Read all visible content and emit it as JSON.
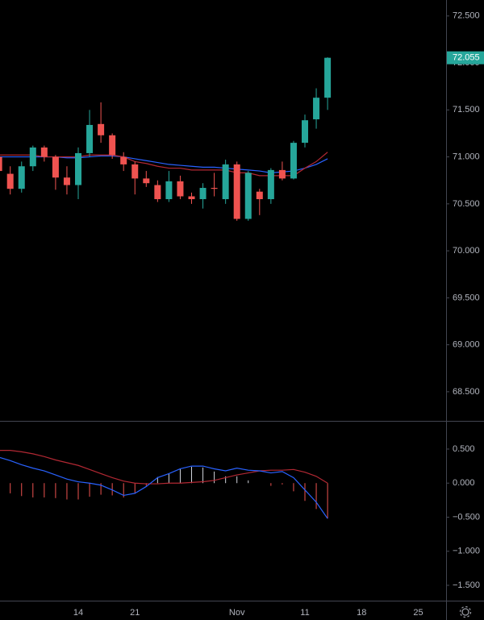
{
  "chart_data": [
    {
      "type": "candlestick",
      "categories": [
        null,
        null,
        null,
        null,
        null,
        null,
        null,
        "14",
        null,
        null,
        null,
        null,
        "21",
        null,
        null,
        null,
        null,
        null,
        null,
        null,
        null,
        "Nov",
        null,
        null,
        null,
        null,
        null,
        "11",
        null,
        null,
        null,
        null,
        "18",
        null,
        null,
        null,
        null,
        "25"
      ],
      "open": [
        71.0,
        70.82,
        70.66,
        70.9,
        71.1,
        71.0,
        70.78,
        70.7,
        71.04,
        71.35,
        71.23,
        71.0,
        70.92,
        70.77,
        70.7,
        70.55,
        70.74,
        70.58,
        70.55,
        70.67,
        70.55,
        70.92,
        70.34,
        70.63,
        70.55,
        70.86,
        70.77,
        71.15,
        71.4,
        71.63,
        null,
        null,
        null,
        null,
        null,
        null,
        null,
        null
      ],
      "high": [
        71.05,
        70.9,
        70.95,
        71.12,
        71.12,
        71.02,
        70.9,
        71.1,
        71.5,
        71.58,
        71.25,
        71.05,
        70.95,
        70.85,
        70.75,
        70.85,
        70.8,
        70.62,
        70.72,
        70.83,
        70.97,
        70.95,
        70.85,
        70.66,
        70.88,
        70.95,
        71.17,
        71.45,
        71.73,
        72.06,
        null,
        null,
        null,
        null,
        null,
        null,
        null,
        null
      ],
      "low": [
        70.8,
        70.6,
        70.62,
        70.85,
        70.95,
        70.65,
        70.6,
        70.55,
        71.0,
        71.15,
        70.98,
        70.85,
        70.6,
        70.68,
        70.52,
        70.52,
        70.55,
        70.5,
        70.45,
        70.58,
        70.5,
        70.32,
        70.32,
        70.38,
        70.5,
        70.75,
        70.76,
        71.1,
        71.3,
        71.5,
        null,
        null,
        null,
        null,
        null,
        null,
        null,
        null
      ],
      "close": [
        70.85,
        70.66,
        70.9,
        71.1,
        71.0,
        70.78,
        70.7,
        71.04,
        71.34,
        71.23,
        71.02,
        70.92,
        70.77,
        70.72,
        70.55,
        70.74,
        70.58,
        70.55,
        70.67,
        70.66,
        70.92,
        70.34,
        70.83,
        70.55,
        70.86,
        70.77,
        71.15,
        71.39,
        71.63,
        72.055,
        null,
        null,
        null,
        null,
        null,
        null,
        null,
        null
      ],
      "up_color": "#26a69a",
      "down_color": "#ef5350",
      "lines": [
        {
          "color": "#2962ff",
          "values": [
            71.0,
            71.0,
            71.0,
            71.0,
            71.0,
            71.0,
            70.99,
            70.99,
            71.0,
            71.01,
            71.01,
            71.0,
            70.98,
            70.96,
            70.94,
            70.92,
            70.91,
            70.9,
            70.89,
            70.89,
            70.88,
            70.87,
            70.86,
            70.85,
            70.83,
            70.84,
            70.85,
            70.88,
            70.92,
            70.98,
            null,
            null,
            null,
            null,
            null,
            null,
            null,
            null
          ]
        },
        {
          "color": "#b22833",
          "values": [
            71.02,
            71.02,
            71.02,
            71.02,
            71.0,
            71.0,
            71.0,
            71.0,
            71.02,
            71.02,
            71.02,
            71.0,
            70.95,
            70.93,
            70.9,
            70.88,
            70.88,
            70.86,
            70.86,
            70.86,
            70.86,
            70.83,
            70.83,
            70.8,
            70.8,
            70.8,
            70.8,
            70.88,
            70.95,
            71.05,
            null,
            null,
            null,
            null,
            null,
            null,
            null,
            null
          ]
        }
      ],
      "ylim": [
        68.19,
        72.67
      ],
      "yticks": [
        {
          "value": 72.5,
          "label": "72.500"
        },
        {
          "value": 72.0,
          "label": "72.000"
        },
        {
          "value": 71.5,
          "label": "71.500"
        },
        {
          "value": 71.0,
          "label": "71.000"
        },
        {
          "value": 70.5,
          "label": "70.500"
        },
        {
          "value": 70.0,
          "label": "70.000"
        },
        {
          "value": 69.5,
          "label": "69.500"
        },
        {
          "value": 69.0,
          "label": "69.000"
        },
        {
          "value": 68.5,
          "label": "68.500"
        }
      ],
      "last_price": 72.055,
      "last_price_color": "#26a69a"
    },
    {
      "type": "macd",
      "macd": {
        "color": "#2962ff",
        "values": [
          0.38,
          0.33,
          0.27,
          0.22,
          0.18,
          0.12,
          0.06,
          0.02,
          0.0,
          -0.03,
          -0.1,
          -0.18,
          -0.15,
          -0.05,
          0.08,
          0.14,
          0.21,
          0.25,
          0.25,
          0.21,
          0.18,
          0.22,
          0.19,
          0.18,
          0.15,
          0.17,
          0.08,
          -0.1,
          -0.28,
          -0.52,
          null,
          null,
          null,
          null,
          null,
          null,
          null,
          null
        ]
      },
      "signal": {
        "color": "#b22833",
        "values": [
          0.48,
          0.48,
          0.46,
          0.43,
          0.39,
          0.34,
          0.3,
          0.26,
          0.2,
          0.14,
          0.08,
          0.03,
          0.0,
          -0.01,
          -0.01,
          0.0,
          0.0,
          0.01,
          0.02,
          0.04,
          0.08,
          0.12,
          0.15,
          0.18,
          0.19,
          0.19,
          0.2,
          0.16,
          0.1,
          0.0,
          null,
          null,
          null,
          null,
          null,
          null,
          null,
          null
        ]
      },
      "histogram": {
        "up_color": "#d1d4dc",
        "down_color": "#ef5350",
        "values": [
          -0.1,
          -0.15,
          -0.19,
          -0.21,
          -0.21,
          -0.22,
          -0.24,
          -0.24,
          -0.2,
          -0.17,
          -0.18,
          -0.21,
          -0.15,
          -0.04,
          0.09,
          0.14,
          0.21,
          0.24,
          0.23,
          0.17,
          0.1,
          0.1,
          0.04,
          0.0,
          -0.04,
          -0.02,
          -0.12,
          -0.26,
          -0.38,
          -0.52,
          null,
          null,
          null,
          null,
          null,
          null,
          null,
          null
        ]
      },
      "ylim": [
        -1.725,
        0.902
      ],
      "yticks": [
        {
          "value": 0.5,
          "label": "0.500"
        },
        {
          "value": 0.0,
          "label": "0.000"
        },
        {
          "value": -0.5,
          "label": "−0.500"
        },
        {
          "value": -1.0,
          "label": "−1.000"
        },
        {
          "value": -1.5,
          "label": "−1.500"
        }
      ]
    }
  ]
}
